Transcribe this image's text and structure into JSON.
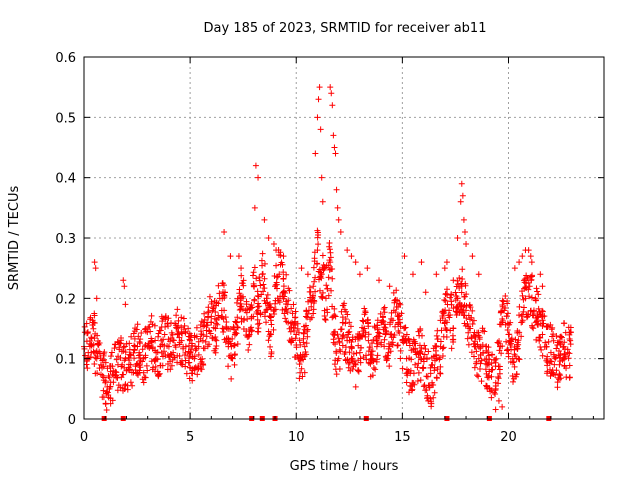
{
  "chart_data": {
    "type": "scatter",
    "title": "Day 185 of 2023, SRMTID for receiver ab11",
    "xlabel": "GPS time / hours",
    "ylabel": "SRMTID / TECUs",
    "xlim": [
      0,
      24.5
    ],
    "ylim": [
      0,
      0.6
    ],
    "xticks": [
      0,
      5,
      10,
      15,
      20
    ],
    "xtick_labels": [
      "0",
      "5",
      "10",
      "15",
      "20"
    ],
    "yticks": [
      0,
      0.1,
      0.2,
      0.3,
      0.4,
      0.5,
      0.6
    ],
    "ytick_labels": [
      "0",
      "0.1",
      "0.2",
      "0.3",
      "0.4",
      "0.5",
      "0.6"
    ],
    "grid": true,
    "marker": "+",
    "color": "#ff0000",
    "baseline_markers_x": [
      0.95,
      1.85,
      7.9,
      8.4,
      9.0,
      13.3,
      17.1,
      19.1,
      21.9
    ],
    "series": [
      {
        "name": "SRMTID",
        "x": [
          0.0,
          0.2,
          0.4,
          0.6,
          0.8,
          1.0,
          1.2,
          1.4,
          1.6,
          1.8,
          2.0,
          2.2,
          2.4,
          2.6,
          2.8,
          3.0,
          3.2,
          3.4,
          3.6,
          3.8,
          4.0,
          4.2,
          4.4,
          4.6,
          4.8,
          5.0,
          5.2,
          5.4,
          5.6,
          5.8,
          6.0,
          6.2,
          6.4,
          6.6,
          6.8,
          7.0,
          7.2,
          7.4,
          7.6,
          7.8,
          8.0,
          8.2,
          8.4,
          8.6,
          8.8,
          9.0,
          9.2,
          9.4,
          9.6,
          9.8,
          10.0,
          10.2,
          10.4,
          10.6,
          10.8,
          11.0,
          11.2,
          11.4,
          11.6,
          11.8,
          12.0,
          12.2,
          12.4,
          12.6,
          12.8,
          13.0,
          13.2,
          13.4,
          13.6,
          13.8,
          14.0,
          14.2,
          14.4,
          14.6,
          14.8,
          15.0,
          15.2,
          15.4,
          15.6,
          15.8,
          16.0,
          16.2,
          16.4,
          16.6,
          16.8,
          17.0,
          17.2,
          17.4,
          17.6,
          17.8,
          18.0,
          18.2,
          18.4,
          18.6,
          18.8,
          19.0,
          19.2,
          19.4,
          19.6,
          19.8,
          20.0,
          20.2,
          20.4,
          20.6,
          20.8,
          21.0,
          21.2,
          21.4,
          21.6,
          21.8,
          22.0,
          22.2,
          22.4,
          22.6,
          22.8
        ],
        "y": [
          0.12,
          0.11,
          0.16,
          0.1,
          0.09,
          0.06,
          0.05,
          0.08,
          0.09,
          0.09,
          0.08,
          0.09,
          0.12,
          0.11,
          0.1,
          0.12,
          0.13,
          0.11,
          0.12,
          0.14,
          0.12,
          0.11,
          0.14,
          0.13,
          0.12,
          0.11,
          0.1,
          0.12,
          0.13,
          0.16,
          0.17,
          0.15,
          0.2,
          0.18,
          0.12,
          0.1,
          0.16,
          0.2,
          0.18,
          0.14,
          0.22,
          0.18,
          0.24,
          0.2,
          0.14,
          0.22,
          0.24,
          0.21,
          0.19,
          0.16,
          0.14,
          0.1,
          0.12,
          0.18,
          0.22,
          0.28,
          0.24,
          0.2,
          0.26,
          0.14,
          0.1,
          0.16,
          0.13,
          0.12,
          0.09,
          0.11,
          0.15,
          0.13,
          0.1,
          0.12,
          0.16,
          0.14,
          0.12,
          0.18,
          0.16,
          0.13,
          0.1,
          0.08,
          0.09,
          0.11,
          0.1,
          0.07,
          0.06,
          0.1,
          0.12,
          0.16,
          0.18,
          0.15,
          0.2,
          0.22,
          0.18,
          0.15,
          0.12,
          0.1,
          0.11,
          0.09,
          0.07,
          0.06,
          0.12,
          0.18,
          0.14,
          0.1,
          0.12,
          0.16,
          0.2,
          0.22,
          0.18,
          0.17,
          0.14,
          0.12,
          0.11,
          0.1,
          0.09,
          0.12,
          0.11
        ]
      }
    ],
    "extra_points": {
      "x": [
        0.5,
        0.55,
        0.6,
        0.45,
        1.85,
        1.9,
        1.95,
        6.6,
        6.9,
        7.3,
        7.4,
        8.05,
        8.1,
        8.2,
        8.5,
        8.7,
        8.95,
        9.05,
        9.4,
        10.25,
        10.55,
        10.9,
        11.0,
        11.05,
        11.1,
        11.15,
        11.2,
        11.25,
        11.6,
        11.65,
        11.7,
        11.75,
        11.8,
        11.85,
        11.9,
        11.95,
        12.0,
        12.1,
        12.4,
        12.6,
        12.8,
        13.0,
        13.35,
        13.9,
        14.4,
        15.1,
        15.5,
        15.9,
        16.1,
        16.6,
        17.0,
        17.1,
        17.4,
        17.6,
        17.75,
        17.8,
        17.85,
        17.9,
        17.95,
        18.0,
        18.3,
        18.6,
        19.4,
        19.55,
        19.7,
        20.3,
        20.5,
        20.65,
        20.8,
        20.95,
        21.05,
        21.1,
        21.5,
        21.6
      ],
      "y": [
        0.26,
        0.25,
        0.2,
        0.16,
        0.23,
        0.22,
        0.19,
        0.31,
        0.27,
        0.27,
        0.25,
        0.35,
        0.42,
        0.4,
        0.33,
        0.3,
        0.29,
        0.28,
        0.27,
        0.25,
        0.24,
        0.44,
        0.5,
        0.53,
        0.55,
        0.48,
        0.4,
        0.36,
        0.55,
        0.54,
        0.52,
        0.47,
        0.45,
        0.44,
        0.38,
        0.35,
        0.33,
        0.31,
        0.28,
        0.27,
        0.26,
        0.24,
        0.25,
        0.23,
        0.22,
        0.27,
        0.24,
        0.26,
        0.21,
        0.24,
        0.25,
        0.26,
        0.23,
        0.3,
        0.36,
        0.39,
        0.37,
        0.33,
        0.31,
        0.29,
        0.27,
        0.24,
        0.05,
        0.03,
        0.02,
        0.25,
        0.26,
        0.27,
        0.28,
        0.28,
        0.27,
        0.26,
        0.24,
        0.22
      ]
    }
  }
}
